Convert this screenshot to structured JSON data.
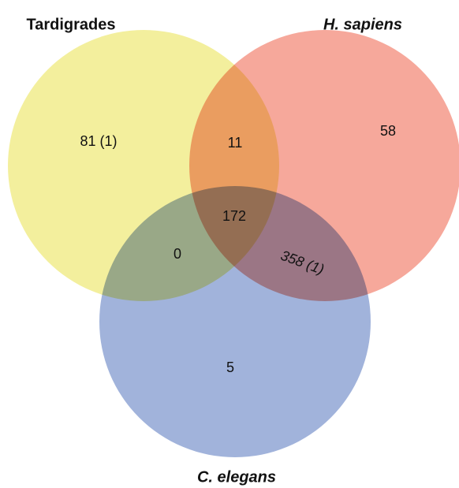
{
  "sets": [
    "Tardigrades",
    "H. sapiens",
    "C. elegans"
  ],
  "regions": {
    "tardigrades_only": "81 (1)",
    "tardigrades_h_sapiens": "11",
    "h_sapiens_only": "58",
    "all_three": "172",
    "tardigrades_c_elegans": "0",
    "h_sapiens_c_elegans": "358 (1)",
    "c_elegans_only": "5"
  }
}
